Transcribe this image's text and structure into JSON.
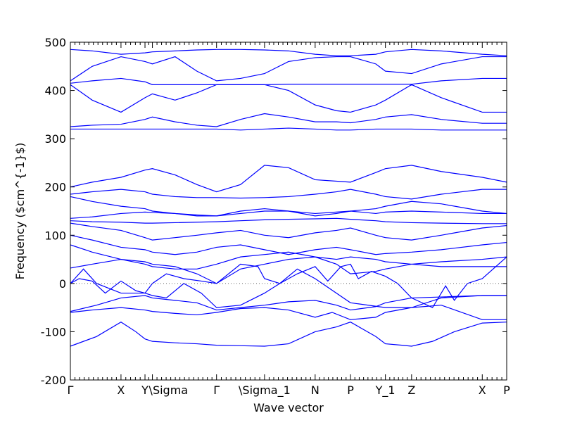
{
  "chart_data": {
    "type": "line",
    "title": "",
    "xlabel": "Wave vector",
    "ylabel": "Frequency ($cm^{-1}$)",
    "ylim": [
      -200,
      500
    ],
    "y_ticks": [
      -200,
      -100,
      0,
      100,
      200,
      300,
      400,
      500
    ],
    "xlim": [
      0,
      1
    ],
    "x_ticks": [
      {
        "label": "Γ",
        "x": 0.0
      },
      {
        "label": "X",
        "x": 0.116
      },
      {
        "label": "Y",
        "x": 0.171
      },
      {
        "label": "\\Sigma",
        "x": 0.188
      },
      {
        "label": "Γ",
        "x": 0.335
      },
      {
        "label": "\\Sigma_1",
        "x": 0.445
      },
      {
        "label": "N",
        "x": 0.561
      },
      {
        "label": "P",
        "x": 0.642
      },
      {
        "label": "Y_1",
        "x": 0.722
      },
      {
        "label": "Z",
        "x": 0.782
      },
      {
        "label": "X",
        "x": 0.944
      },
      {
        "label": "P",
        "x": 1.0
      }
    ],
    "zero_line": true,
    "line_color": "#0000ff",
    "series": [
      {
        "x": [
          0,
          0.06,
          0.116,
          0.15,
          0.171,
          0.188,
          0.24,
          0.29,
          0.335,
          0.39,
          0.445,
          0.5,
          0.561,
          0.61,
          0.642,
          0.7,
          0.722,
          0.76,
          0.782,
          0.83,
          0.88,
          0.944,
          1.0
        ],
        "y": [
          -130,
          -110,
          -80,
          -100,
          -115,
          -120,
          -123,
          -125,
          -128,
          -129,
          -130,
          -125,
          -100,
          -90,
          -80,
          -110,
          -125,
          -128,
          -130,
          -120,
          -100,
          -82,
          -80
        ]
      },
      {
        "x": [
          0,
          0.05,
          0.116,
          0.171,
          0.188,
          0.24,
          0.29,
          0.335,
          0.39,
          0.445,
          0.5,
          0.561,
          0.6,
          0.642,
          0.7,
          0.722,
          0.782,
          0.85,
          0.944,
          1.0
        ],
        "y": [
          -60,
          -55,
          -50,
          -55,
          -58,
          -62,
          -65,
          -60,
          -52,
          -50,
          -55,
          -70,
          -60,
          -75,
          -70,
          -60,
          -50,
          -45,
          -75,
          -75
        ]
      },
      {
        "x": [
          0,
          0.06,
          0.116,
          0.171,
          0.188,
          0.24,
          0.29,
          0.335,
          0.39,
          0.445,
          0.5,
          0.561,
          0.61,
          0.642,
          0.7,
          0.722,
          0.782,
          0.85,
          0.944,
          1.0
        ],
        "y": [
          -58,
          -45,
          -30,
          -25,
          -30,
          -35,
          -40,
          -55,
          -50,
          -45,
          -38,
          -35,
          -45,
          -55,
          -48,
          -40,
          -30,
          -28,
          -25,
          -25
        ]
      },
      {
        "x": [
          0,
          0.03,
          0.06,
          0.116,
          0.171,
          0.188,
          0.22,
          0.26,
          0.3,
          0.335,
          0.39,
          0.445,
          0.48,
          0.52,
          0.561,
          0.642,
          0.722,
          0.782,
          0.85,
          0.944,
          1.0
        ],
        "y": [
          0,
          30,
          0,
          -20,
          -20,
          -25,
          -30,
          0,
          -20,
          -50,
          -45,
          -20,
          0,
          30,
          10,
          -40,
          -50,
          -50,
          -30,
          -25,
          -25
        ]
      },
      {
        "x": [
          0,
          0.02,
          0.05,
          0.08,
          0.116,
          0.15,
          0.171,
          0.188,
          0.22,
          0.26,
          0.3,
          0.335,
          0.39,
          0.43,
          0.445,
          0.48,
          0.52,
          0.561,
          0.59,
          0.62,
          0.642,
          0.66,
          0.69,
          0.722,
          0.75,
          0.782,
          0.83,
          0.86,
          0.88,
          0.91,
          0.944,
          1.0
        ],
        "y": [
          0,
          10,
          5,
          -20,
          5,
          -15,
          -20,
          0,
          20,
          10,
          5,
          0,
          40,
          35,
          10,
          0,
          20,
          35,
          5,
          35,
          40,
          10,
          25,
          15,
          0,
          -30,
          -50,
          -5,
          -35,
          0,
          10,
          55
        ]
      },
      {
        "x": [
          0,
          0.05,
          0.116,
          0.171,
          0.188,
          0.24,
          0.29,
          0.335,
          0.39,
          0.445,
          0.5,
          0.561,
          0.61,
          0.642,
          0.7,
          0.722,
          0.782,
          0.85,
          0.944,
          1.0
        ],
        "y": [
          32,
          40,
          50,
          45,
          40,
          35,
          20,
          0,
          30,
          40,
          50,
          55,
          40,
          20,
          25,
          30,
          40,
          45,
          50,
          55
        ]
      },
      {
        "x": [
          0,
          0.05,
          0.116,
          0.171,
          0.188,
          0.24,
          0.29,
          0.335,
          0.39,
          0.445,
          0.5,
          0.561,
          0.61,
          0.642,
          0.7,
          0.722,
          0.782,
          0.85,
          0.944,
          1.0
        ],
        "y": [
          80,
          65,
          50,
          40,
          35,
          30,
          30,
          40,
          55,
          60,
          65,
          55,
          50,
          55,
          50,
          45,
          40,
          35,
          35,
          35
        ]
      },
      {
        "x": [
          0,
          0.05,
          0.116,
          0.171,
          0.188,
          0.24,
          0.29,
          0.335,
          0.39,
          0.445,
          0.5,
          0.561,
          0.61,
          0.642,
          0.7,
          0.722,
          0.782,
          0.85,
          0.944,
          1.0
        ],
        "y": [
          100,
          90,
          75,
          70,
          65,
          60,
          65,
          75,
          80,
          70,
          60,
          70,
          75,
          70,
          60,
          62,
          65,
          70,
          80,
          85
        ]
      },
      {
        "x": [
          0,
          0.05,
          0.116,
          0.171,
          0.188,
          0.24,
          0.29,
          0.335,
          0.39,
          0.445,
          0.5,
          0.561,
          0.61,
          0.642,
          0.7,
          0.722,
          0.782,
          0.85,
          0.944,
          1.0
        ],
        "y": [
          125,
          118,
          110,
          95,
          90,
          95,
          100,
          105,
          110,
          100,
          95,
          105,
          110,
          115,
          100,
          95,
          90,
          100,
          115,
          120
        ]
      },
      {
        "x": [
          0,
          0.05,
          0.116,
          0.171,
          0.188,
          0.24,
          0.29,
          0.335,
          0.39,
          0.445,
          0.5,
          0.561,
          0.61,
          0.642,
          0.7,
          0.722,
          0.782,
          0.85,
          0.944,
          1.0
        ],
        "y": [
          130,
          128,
          127,
          125,
          125,
          126,
          127,
          128,
          130,
          132,
          133,
          134,
          135,
          133,
          130,
          128,
          126,
          125,
          124,
          124
        ]
      },
      {
        "x": [
          0,
          0.05,
          0.116,
          0.171,
          0.188,
          0.24,
          0.29,
          0.335,
          0.39,
          0.445,
          0.5,
          0.561,
          0.61,
          0.642,
          0.7,
          0.722,
          0.782,
          0.85,
          0.944,
          1.0
        ],
        "y": [
          135,
          138,
          145,
          148,
          147,
          145,
          142,
          140,
          145,
          150,
          150,
          145,
          148,
          150,
          145,
          148,
          150,
          148,
          145,
          145
        ]
      },
      {
        "x": [
          0,
          0.05,
          0.116,
          0.171,
          0.188,
          0.24,
          0.29,
          0.335,
          0.39,
          0.445,
          0.5,
          0.561,
          0.61,
          0.642,
          0.7,
          0.722,
          0.782,
          0.85,
          0.944,
          1.0
        ],
        "y": [
          180,
          170,
          160,
          155,
          150,
          145,
          140,
          140,
          150,
          155,
          150,
          140,
          145,
          150,
          155,
          160,
          170,
          165,
          150,
          145
        ]
      },
      {
        "x": [
          0,
          0.05,
          0.116,
          0.171,
          0.188,
          0.24,
          0.29,
          0.335,
          0.39,
          0.445,
          0.5,
          0.561,
          0.61,
          0.642,
          0.7,
          0.722,
          0.782,
          0.85,
          0.944,
          1.0
        ],
        "y": [
          185,
          190,
          195,
          190,
          185,
          180,
          178,
          178,
          177,
          178,
          180,
          185,
          190,
          195,
          185,
          180,
          175,
          185,
          195,
          195
        ]
      },
      {
        "x": [
          0,
          0.05,
          0.116,
          0.171,
          0.188,
          0.24,
          0.29,
          0.335,
          0.39,
          0.445,
          0.5,
          0.561,
          0.61,
          0.642,
          0.7,
          0.722,
          0.782,
          0.85,
          0.944,
          1.0
        ],
        "y": [
          200,
          210,
          220,
          235,
          238,
          225,
          205,
          190,
          205,
          245,
          240,
          215,
          212,
          210,
          230,
          238,
          245,
          232,
          220,
          210
        ]
      },
      {
        "x": [
          0,
          0.05,
          0.116,
          0.171,
          0.188,
          0.24,
          0.29,
          0.335,
          0.39,
          0.445,
          0.5,
          0.561,
          0.61,
          0.642,
          0.7,
          0.722,
          0.782,
          0.85,
          0.944,
          1.0
        ],
        "y": [
          320,
          320,
          320,
          320,
          320,
          320,
          320,
          320,
          318,
          320,
          322,
          320,
          318,
          318,
          320,
          320,
          320,
          318,
          318,
          318
        ]
      },
      {
        "x": [
          0,
          0.05,
          0.116,
          0.171,
          0.188,
          0.24,
          0.29,
          0.335,
          0.39,
          0.445,
          0.5,
          0.561,
          0.61,
          0.642,
          0.7,
          0.722,
          0.782,
          0.85,
          0.944,
          1.0
        ],
        "y": [
          325,
          328,
          330,
          340,
          345,
          335,
          328,
          325,
          340,
          352,
          345,
          335,
          335,
          333,
          340,
          345,
          350,
          340,
          332,
          332
        ]
      },
      {
        "x": [
          0,
          0.05,
          0.116,
          0.171,
          0.188,
          0.24,
          0.29,
          0.335,
          0.39,
          0.445,
          0.5,
          0.561,
          0.61,
          0.642,
          0.7,
          0.722,
          0.782,
          0.85,
          0.944,
          1.0
        ],
        "y": [
          412,
          380,
          355,
          385,
          393,
          380,
          395,
          412,
          412,
          412,
          400,
          370,
          358,
          355,
          370,
          380,
          412,
          385,
          355,
          355
        ]
      },
      {
        "x": [
          0,
          0.05,
          0.116,
          0.171,
          0.188,
          0.24,
          0.29,
          0.335,
          0.39,
          0.445,
          0.5,
          0.561,
          0.61,
          0.642,
          0.7,
          0.722,
          0.782,
          0.85,
          0.944,
          1.0
        ],
        "y": [
          415,
          420,
          425,
          418,
          412,
          412,
          412,
          412,
          412,
          412,
          413,
          413,
          413,
          413,
          413,
          413,
          413,
          420,
          425,
          425
        ]
      },
      {
        "x": [
          0,
          0.05,
          0.116,
          0.171,
          0.188,
          0.24,
          0.29,
          0.335,
          0.39,
          0.445,
          0.5,
          0.561,
          0.61,
          0.642,
          0.7,
          0.722,
          0.782,
          0.85,
          0.944,
          1.0
        ],
        "y": [
          420,
          450,
          470,
          460,
          455,
          470,
          440,
          420,
          425,
          435,
          460,
          468,
          470,
          470,
          455,
          440,
          435,
          455,
          470,
          470
        ]
      },
      {
        "x": [
          0,
          0.05,
          0.116,
          0.171,
          0.188,
          0.24,
          0.29,
          0.335,
          0.39,
          0.445,
          0.5,
          0.561,
          0.61,
          0.642,
          0.7,
          0.722,
          0.782,
          0.85,
          0.944,
          1.0
        ],
        "y": [
          485,
          482,
          475,
          478,
          480,
          482,
          484,
          485,
          485,
          484,
          482,
          475,
          472,
          472,
          475,
          480,
          485,
          482,
          475,
          472
        ]
      }
    ]
  }
}
